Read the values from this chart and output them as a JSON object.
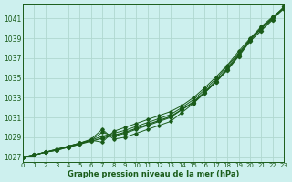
{
  "title": "Graphe pression niveau de la mer (hPa)",
  "background_color": "#cdf0ee",
  "grid_color": "#b0d8d0",
  "line_color": "#1a5c1a",
  "xlim": [
    0,
    23
  ],
  "ylim": [
    1026.5,
    1042.5
  ],
  "yticks": [
    1027,
    1029,
    1031,
    1033,
    1035,
    1037,
    1039,
    1041
  ],
  "xticks": [
    0,
    1,
    2,
    3,
    4,
    5,
    6,
    7,
    8,
    9,
    10,
    11,
    12,
    13,
    14,
    15,
    16,
    17,
    18,
    19,
    20,
    21,
    22,
    23
  ],
  "series": [
    [
      1027.0,
      1027.2,
      1027.5,
      1027.7,
      1028.0,
      1028.3,
      1028.6,
      1028.9,
      1029.2,
      1029.5,
      1029.9,
      1030.3,
      1030.7,
      1031.1,
      1031.8,
      1032.5,
      1033.5,
      1034.6,
      1035.8,
      1037.2,
      1038.7,
      1039.8,
      1040.9,
      1042.2
    ],
    [
      1027.0,
      1027.2,
      1027.5,
      1027.7,
      1028.1,
      1028.4,
      1028.7,
      1029.1,
      1029.4,
      1029.7,
      1030.1,
      1030.5,
      1030.9,
      1031.3,
      1032.0,
      1032.8,
      1033.8,
      1034.9,
      1036.2,
      1037.5,
      1038.9,
      1040.1,
      1041.1,
      1042.2
    ],
    [
      1027.0,
      1027.2,
      1027.5,
      1027.8,
      1028.1,
      1028.4,
      1028.7,
      1029.5,
      1029.1,
      1029.4,
      1029.8,
      1030.2,
      1030.6,
      1031.0,
      1031.8,
      1032.6,
      1033.6,
      1034.7,
      1036.0,
      1037.4,
      1038.9,
      1040.0,
      1041.1,
      1042.1
    ],
    [
      1027.0,
      1027.2,
      1027.5,
      1027.7,
      1028.0,
      1028.3,
      1028.7,
      1028.5,
      1029.6,
      1030.0,
      1030.4,
      1030.8,
      1031.2,
      1031.6,
      1032.2,
      1033.0,
      1034.0,
      1035.1,
      1036.3,
      1037.7,
      1039.0,
      1040.2,
      1041.2,
      1042.1
    ],
    [
      1027.0,
      1027.2,
      1027.5,
      1027.8,
      1028.1,
      1028.4,
      1028.8,
      1029.8,
      1028.8,
      1029.0,
      1029.4,
      1029.8,
      1030.2,
      1030.6,
      1031.5,
      1032.4,
      1033.5,
      1034.6,
      1035.9,
      1037.3,
      1038.8,
      1040.0,
      1041.0,
      1042.0
    ]
  ]
}
